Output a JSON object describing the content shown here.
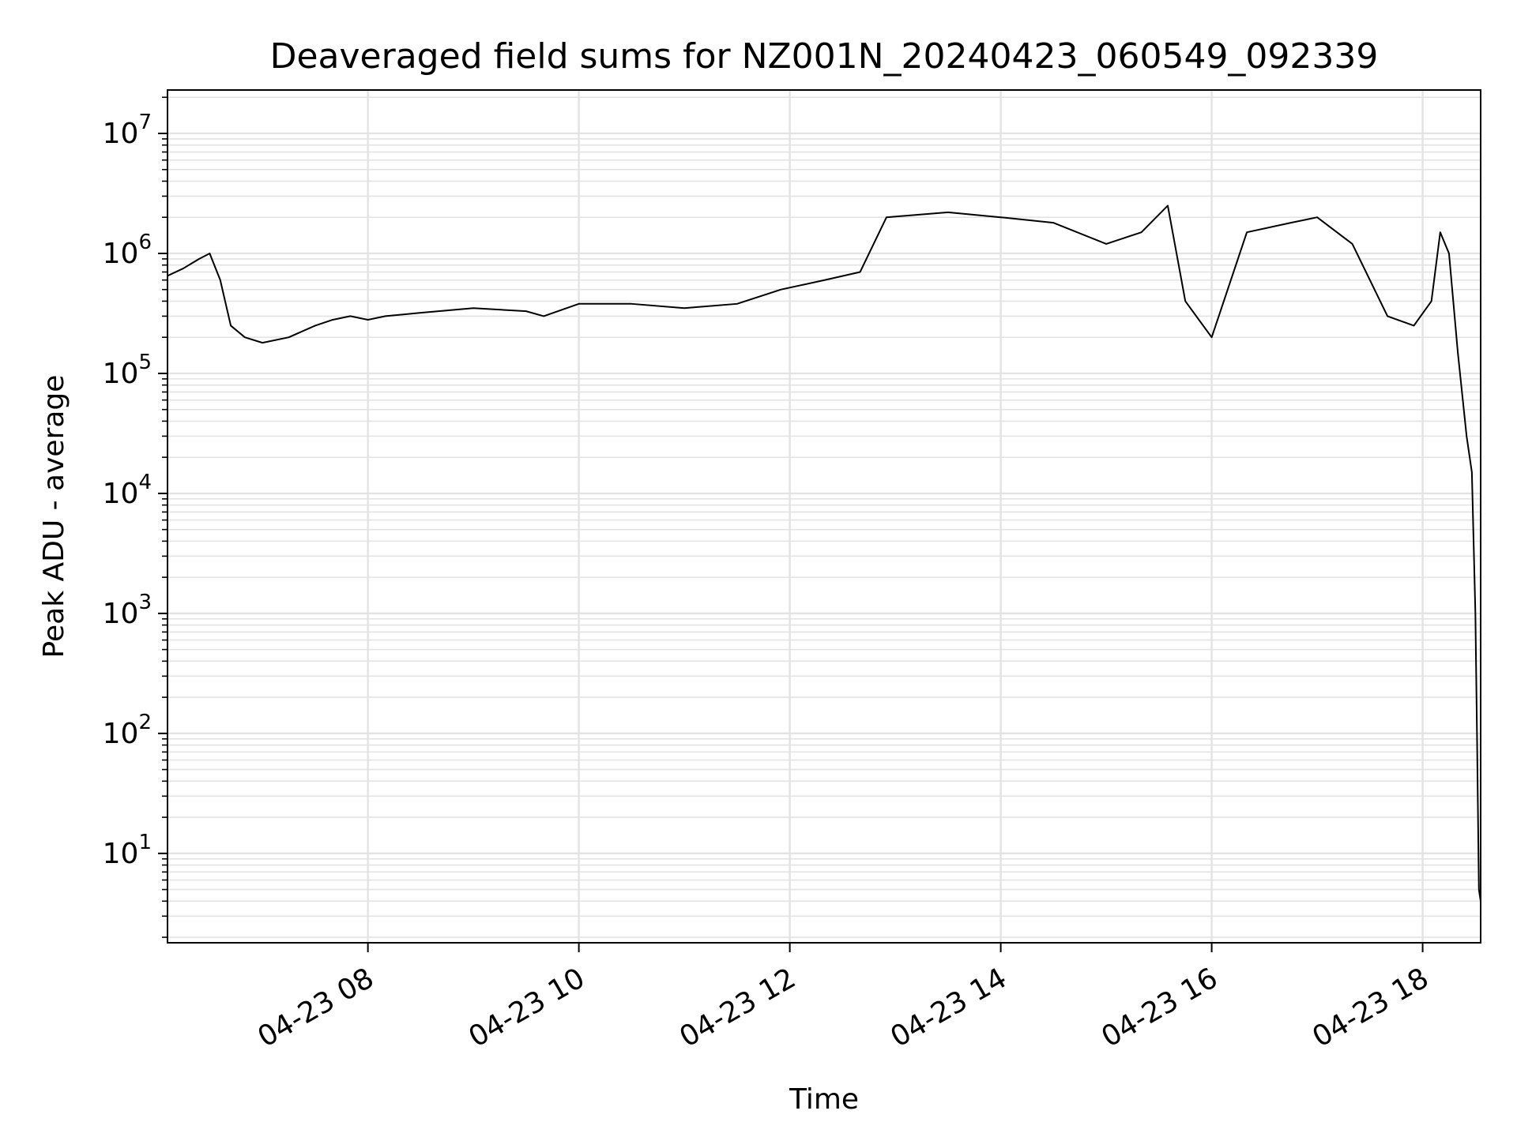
{
  "chart_data": {
    "type": "line",
    "title": "Deaveraged field sums for NZ001N_20240423_060549_092339",
    "xlabel": "Time",
    "ylabel": "Peak ADU - average",
    "yscale": "log",
    "ylim": [
      1.8,
      23000000
    ],
    "xlim": [
      "2024-04-23 06:06",
      "2024-04-23 18:33"
    ],
    "grid": true,
    "line_color": "#000000",
    "grid_color": "#e3e3e3",
    "x_ticks": [
      {
        "value": "2024-04-23 08:00",
        "label": "04-23 08"
      },
      {
        "value": "2024-04-23 10:00",
        "label": "04-23 10"
      },
      {
        "value": "2024-04-23 12:00",
        "label": "04-23 12"
      },
      {
        "value": "2024-04-23 14:00",
        "label": "04-23 14"
      },
      {
        "value": "2024-04-23 16:00",
        "label": "04-23 16"
      },
      {
        "value": "2024-04-23 18:00",
        "label": "04-23 18"
      }
    ],
    "y_ticks": [
      {
        "value": 10,
        "base": "10",
        "exp": "1"
      },
      {
        "value": 100,
        "base": "10",
        "exp": "2"
      },
      {
        "value": 1000,
        "base": "10",
        "exp": "3"
      },
      {
        "value": 10000,
        "base": "10",
        "exp": "4"
      },
      {
        "value": 100000,
        "base": "10",
        "exp": "5"
      },
      {
        "value": 1000000,
        "base": "10",
        "exp": "6"
      },
      {
        "value": 10000000,
        "base": "10",
        "exp": "7"
      }
    ],
    "series": [
      {
        "x": [
          "2024-04-23 06:06",
          "2024-04-23 06:15",
          "2024-04-23 06:24",
          "2024-04-23 06:30",
          "2024-04-23 06:36",
          "2024-04-23 06:42",
          "2024-04-23 06:50",
          "2024-04-23 07:00",
          "2024-04-23 07:15",
          "2024-04-23 07:30",
          "2024-04-23 07:40",
          "2024-04-23 07:50",
          "2024-04-23 08:00",
          "2024-04-23 08:10",
          "2024-04-23 08:30",
          "2024-04-23 09:00",
          "2024-04-23 09:30",
          "2024-04-23 09:40",
          "2024-04-23 10:00",
          "2024-04-23 10:30",
          "2024-04-23 11:00",
          "2024-04-23 11:30",
          "2024-04-23 11:55",
          "2024-04-23 12:20",
          "2024-04-23 12:40",
          "2024-04-23 12:55",
          "2024-04-23 13:30",
          "2024-04-23 14:00",
          "2024-04-23 14:30",
          "2024-04-23 15:00",
          "2024-04-23 15:20",
          "2024-04-23 15:35",
          "2024-04-23 15:45",
          "2024-04-23 16:00",
          "2024-04-23 16:20",
          "2024-04-23 16:45",
          "2024-04-23 17:00",
          "2024-04-23 17:20",
          "2024-04-23 17:40",
          "2024-04-23 17:55",
          "2024-04-23 18:05",
          "2024-04-23 18:10",
          "2024-04-23 18:15",
          "2024-04-23 18:20",
          "2024-04-23 18:25",
          "2024-04-23 18:28",
          "2024-04-23 18:30",
          "2024-04-23 18:31",
          "2024-04-23 18:32",
          "2024-04-23 18:33"
        ],
        "y": [
          650000,
          750000,
          900000,
          1000000,
          600000,
          250000,
          200000,
          180000,
          200000,
          250000,
          280000,
          300000,
          280000,
          300000,
          320000,
          350000,
          330000,
          300000,
          380000,
          380000,
          350000,
          380000,
          500000,
          600000,
          700000,
          2000000,
          2200000,
          2000000,
          1800000,
          1200000,
          1500000,
          2500000,
          400000,
          200000,
          1500000,
          1800000,
          2000000,
          1200000,
          300000,
          250000,
          400000,
          1500000,
          1000000,
          150000,
          30000,
          15000,
          1000,
          80,
          5,
          4
        ]
      }
    ]
  }
}
